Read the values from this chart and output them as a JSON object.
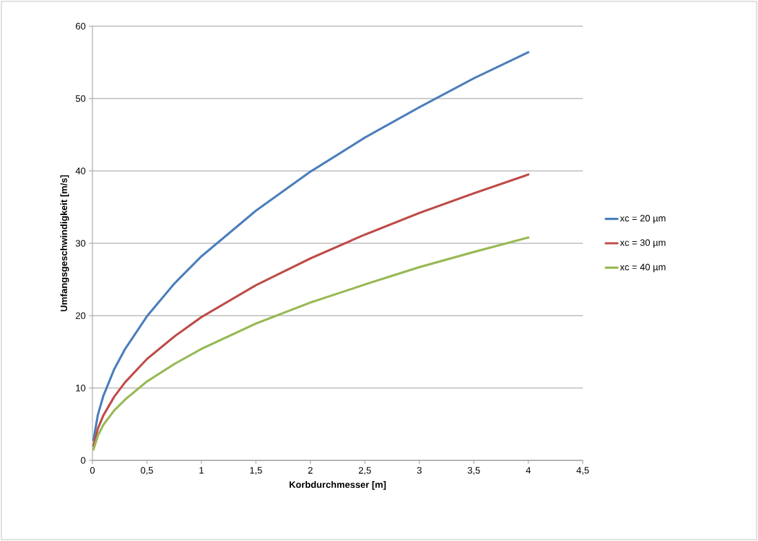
{
  "chart_data": {
    "type": "line",
    "xlabel": "Korbdurchmesser [m]",
    "ylabel": "Umfangsgeschwindigkeit [m/s]",
    "x": [
      0.01,
      0.05,
      0.1,
      0.2,
      0.3,
      0.5,
      0.75,
      1,
      1.5,
      2,
      2.5,
      3,
      3.5,
      4
    ],
    "series": [
      {
        "name": "xc = 20 µm",
        "color": "#4a7ebb",
        "values": [
          2.8,
          6.3,
          8.9,
          12.6,
          15.4,
          19.9,
          24.4,
          28.2,
          34.5,
          39.9,
          44.6,
          48.8,
          52.8,
          56.4
        ]
      },
      {
        "name": "xc = 30 µm",
        "color": "#be4b48",
        "values": [
          2.0,
          4.4,
          6.2,
          8.8,
          10.8,
          14.0,
          17.1,
          19.8,
          24.2,
          27.9,
          31.2,
          34.2,
          36.9,
          39.5
        ]
      },
      {
        "name": "xc = 40 µm",
        "color": "#98b954",
        "values": [
          1.5,
          3.4,
          4.9,
          6.9,
          8.4,
          10.9,
          13.3,
          15.4,
          18.9,
          21.8,
          24.3,
          26.7,
          28.8,
          30.8
        ]
      }
    ],
    "xlim": [
      0,
      4.5
    ],
    "xticks": [
      0,
      {
        "value": 0.5,
        "label": "0,5"
      },
      1,
      {
        "value": 1.5,
        "label": "1,5"
      },
      2,
      {
        "value": 2.5,
        "label": "2,5"
      },
      3,
      {
        "value": 3.5,
        "label": "3,5"
      },
      4,
      {
        "value": 4.5,
        "label": "4,5"
      }
    ],
    "ylim": [
      0,
      60
    ],
    "yticks": [
      0,
      10,
      20,
      30,
      40,
      50,
      60
    ],
    "grid": "y",
    "legend": "right",
    "marker": "none",
    "line_style": "solid"
  }
}
